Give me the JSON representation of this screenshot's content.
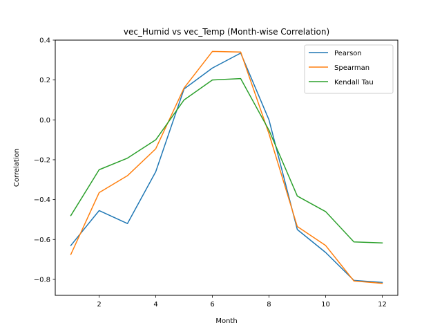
{
  "chart_data": {
    "type": "line",
    "title": "vec_Humid vs vec_Temp (Month-wise Correlation)",
    "xlabel": "Month",
    "ylabel": "Correlation",
    "x": [
      1,
      2,
      3,
      4,
      5,
      6,
      7,
      8,
      9,
      10,
      11,
      12
    ],
    "xlim": [
      0.45,
      12.55
    ],
    "ylim": [
      -0.88,
      0.4
    ],
    "xticks": [
      2,
      4,
      6,
      8,
      10,
      12
    ],
    "yticks": [
      -0.8,
      -0.6,
      -0.4,
      -0.2,
      0.0,
      0.2,
      0.4
    ],
    "ytick_labels": [
      "−0.8",
      "−0.6",
      "−0.4",
      "−0.2",
      "0.0",
      "0.2",
      "0.4"
    ],
    "grid": false,
    "legend_position": "top-right",
    "series": [
      {
        "name": "Pearson",
        "color": "#1f77b4",
        "values": [
          -0.63,
          -0.455,
          -0.52,
          -0.26,
          0.155,
          0.26,
          0.335,
          0.0,
          -0.55,
          -0.665,
          -0.805,
          -0.815
        ]
      },
      {
        "name": "Spearman",
        "color": "#ff7f0e",
        "values": [
          -0.675,
          -0.365,
          -0.28,
          -0.145,
          0.16,
          0.343,
          0.34,
          -0.07,
          -0.535,
          -0.63,
          -0.808,
          -0.82
        ]
      },
      {
        "name": "Kendall Tau",
        "color": "#2ca02c",
        "values": [
          -0.48,
          -0.25,
          -0.192,
          -0.1,
          0.1,
          0.2,
          0.207,
          -0.052,
          -0.382,
          -0.46,
          -0.612,
          -0.617
        ]
      }
    ]
  }
}
